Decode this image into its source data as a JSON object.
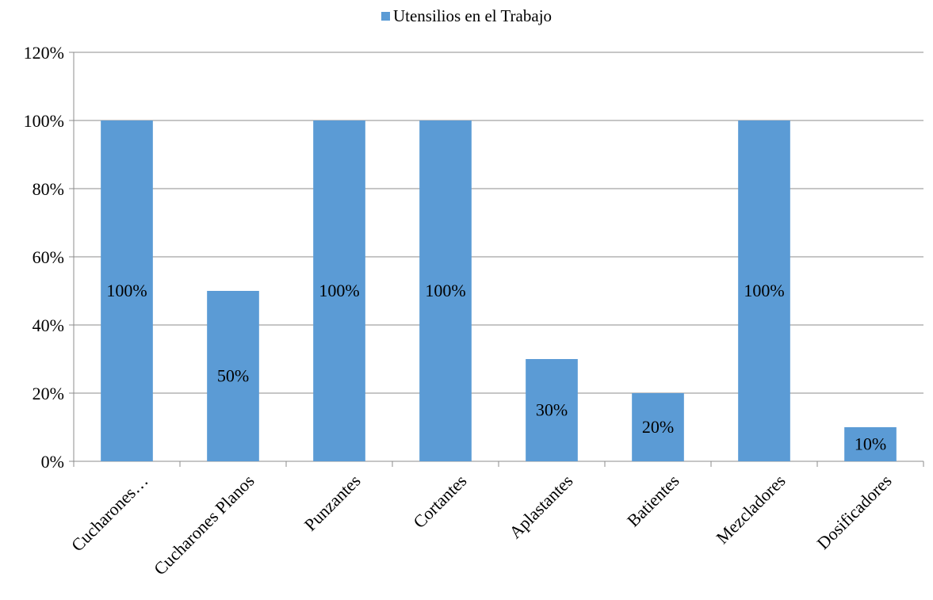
{
  "chart_data": {
    "type": "bar",
    "title": "",
    "xlabel": "",
    "ylabel": "",
    "categories": [
      "Cucharones…",
      "Cucharones Planos",
      "Punzantes",
      "Cortantes",
      "Aplastantes",
      "Batientes",
      "Mezcladores",
      "Dosificadores"
    ],
    "series": [
      {
        "name": "Utensilios en el Trabajo",
        "values": [
          100,
          50,
          100,
          100,
          30,
          20,
          100,
          10
        ],
        "color": "#5b9bd5"
      }
    ],
    "data_labels": [
      "100%",
      "50%",
      "100%",
      "100%",
      "30%",
      "20%",
      "100%",
      "10%"
    ],
    "yticks": [
      "0%",
      "20%",
      "40%",
      "60%",
      "80%",
      "100%",
      "120%"
    ],
    "ylim": [
      0,
      120
    ],
    "y_unit": "%",
    "grid": true,
    "legend_position": "top"
  }
}
